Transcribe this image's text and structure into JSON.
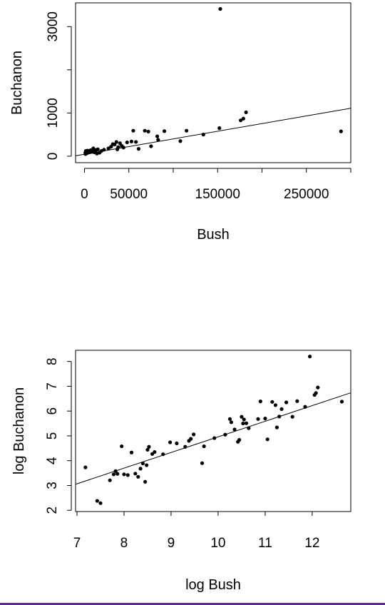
{
  "colors": {
    "points": "#000000",
    "line": "#000000",
    "frame": "#000000",
    "bottom_rule": "#5b2d86"
  },
  "chart_data": [
    {
      "type": "scatter",
      "title": "",
      "xlabel": "Bush",
      "ylabel": "Buchanon",
      "xlim": [
        -10000,
        300000
      ],
      "ylim": [
        -150,
        3550
      ],
      "xticks": [
        0,
        50000,
        150000,
        250000
      ],
      "xtick_labels": [
        "0",
        "50000",
        "150000",
        "250000"
      ],
      "xticks_minor": [
        100000,
        200000,
        300000
      ],
      "yticks": [
        0,
        1000,
        3000
      ],
      "ytick_labels": [
        "0",
        "1000",
        "3000"
      ],
      "yticks_minor": [
        2000
      ],
      "grid": false,
      "regression_line": {
        "intercept": 45,
        "slope": 0.00355
      },
      "points": [
        [
          153000,
          3410
        ],
        [
          182000,
          1015
        ],
        [
          176000,
          830
        ],
        [
          179000,
          870
        ],
        [
          152000,
          650
        ],
        [
          289000,
          575
        ],
        [
          55000,
          590
        ],
        [
          68000,
          590
        ],
        [
          72000,
          570
        ],
        [
          90000,
          580
        ],
        [
          115000,
          590
        ],
        [
          134000,
          500
        ],
        [
          82000,
          460
        ],
        [
          83000,
          380
        ],
        [
          108000,
          350
        ],
        [
          53000,
          340
        ],
        [
          58000,
          330
        ],
        [
          48000,
          320
        ],
        [
          75000,
          230
        ],
        [
          61000,
          170
        ],
        [
          40000,
          300
        ],
        [
          36000,
          330
        ],
        [
          34000,
          270
        ],
        [
          32000,
          280
        ],
        [
          38000,
          210
        ],
        [
          42000,
          240
        ],
        [
          44000,
          200
        ],
        [
          30000,
          220
        ],
        [
          27000,
          180
        ],
        [
          37000,
          160
        ],
        [
          22000,
          150
        ],
        [
          19000,
          120
        ],
        [
          15000,
          160
        ],
        [
          13000,
          140
        ],
        [
          12000,
          110
        ],
        [
          10000,
          180
        ],
        [
          9000,
          120
        ],
        [
          8000,
          100
        ],
        [
          7000,
          140
        ],
        [
          6000,
          90
        ],
        [
          5000,
          110
        ],
        [
          4000,
          80
        ],
        [
          3500,
          130
        ],
        [
          3000,
          100
        ],
        [
          2500,
          70
        ],
        [
          2000,
          90
        ],
        [
          1800,
          60
        ],
        [
          1500,
          120
        ],
        [
          1200,
          50
        ],
        [
          1000,
          80
        ],
        [
          11000,
          90
        ],
        [
          17000,
          80
        ],
        [
          14000,
          60
        ]
      ]
    },
    {
      "type": "scatter",
      "title": "",
      "xlabel": "log Bush",
      "ylabel": "log Buchanon",
      "xlim": [
        6.97,
        12.82
      ],
      "ylim": [
        1.95,
        8.45
      ],
      "xticks": [
        7,
        8,
        9,
        10,
        11,
        12
      ],
      "xtick_labels": [
        "7",
        "8",
        "9",
        "10",
        "11",
        "12"
      ],
      "yticks": [
        2,
        3,
        4,
        5,
        6,
        7,
        8
      ],
      "ytick_labels": [
        "2",
        "3",
        "4",
        "5",
        "6",
        "7",
        "8"
      ],
      "grid": false,
      "regression_line": {
        "intercept": -1.34,
        "slope": 0.63
      },
      "points": [
        [
          7.18,
          3.73
        ],
        [
          7.43,
          2.38
        ],
        [
          7.5,
          2.29
        ],
        [
          7.7,
          3.21
        ],
        [
          7.78,
          3.45
        ],
        [
          7.82,
          3.58
        ],
        [
          7.86,
          3.47
        ],
        [
          7.95,
          4.58
        ],
        [
          8.0,
          3.45
        ],
        [
          8.08,
          3.42
        ],
        [
          8.16,
          4.33
        ],
        [
          8.24,
          3.48
        ],
        [
          8.3,
          3.35
        ],
        [
          8.35,
          3.68
        ],
        [
          8.4,
          3.89
        ],
        [
          8.45,
          3.15
        ],
        [
          8.48,
          3.82
        ],
        [
          8.5,
          4.44
        ],
        [
          8.53,
          4.56
        ],
        [
          8.6,
          4.27
        ],
        [
          8.65,
          4.35
        ],
        [
          8.83,
          4.26
        ],
        [
          8.98,
          4.74
        ],
        [
          9.12,
          4.7
        ],
        [
          9.3,
          4.56
        ],
        [
          9.38,
          4.8
        ],
        [
          9.42,
          4.88
        ],
        [
          9.48,
          5.06
        ],
        [
          9.66,
          3.9
        ],
        [
          9.7,
          4.58
        ],
        [
          9.92,
          4.91
        ],
        [
          10.15,
          5.05
        ],
        [
          10.25,
          5.68
        ],
        [
          10.28,
          5.55
        ],
        [
          10.35,
          5.26
        ],
        [
          10.42,
          4.76
        ],
        [
          10.45,
          4.84
        ],
        [
          10.5,
          5.77
        ],
        [
          10.53,
          5.5
        ],
        [
          10.55,
          5.66
        ],
        [
          10.6,
          5.51
        ],
        [
          10.65,
          5.31
        ],
        [
          10.85,
          5.68
        ],
        [
          10.9,
          6.39
        ],
        [
          11.0,
          5.7
        ],
        [
          11.05,
          4.86
        ],
        [
          11.15,
          6.37
        ],
        [
          11.22,
          6.24
        ],
        [
          11.25,
          5.34
        ],
        [
          11.3,
          5.78
        ],
        [
          11.35,
          6.08
        ],
        [
          11.45,
          6.35
        ],
        [
          11.58,
          5.77
        ],
        [
          11.68,
          6.4
        ],
        [
          11.85,
          6.17
        ],
        [
          11.95,
          8.2
        ],
        [
          12.08,
          6.73
        ],
        [
          12.12,
          6.95
        ],
        [
          12.05,
          6.65
        ],
        [
          12.63,
          6.38
        ]
      ]
    }
  ]
}
